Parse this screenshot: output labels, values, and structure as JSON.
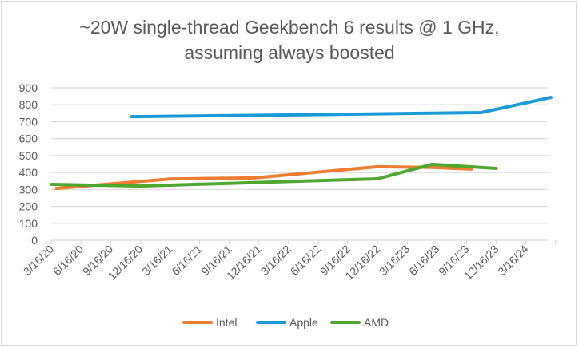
{
  "chart_data": {
    "type": "line",
    "title": [
      "~20W single-thread Geekbench 6 results @ 1 GHz,",
      "assuming always boosted"
    ],
    "xlabel": "",
    "ylabel": "",
    "ylim": [
      0,
      900
    ],
    "yticks": [
      0,
      100,
      200,
      300,
      400,
      500,
      600,
      700,
      800,
      900
    ],
    "xlim": [
      "2020-03-16",
      "2024-06-01"
    ],
    "xtick_labels": [
      "3/16/20",
      "6/16/20",
      "9/16/20",
      "12/16/20",
      "3/16/21",
      "6/16/21",
      "9/16/21",
      "12/16/21",
      "3/16/22",
      "6/16/22",
      "9/16/22",
      "12/16/22",
      "3/16/23",
      "6/16/23",
      "9/16/23",
      "12/16/23",
      "3/16/24"
    ],
    "grid": true,
    "legend": "bottom",
    "series": [
      {
        "name": "Intel",
        "color": "#ED7D31",
        "x": [
          "2020-04-01",
          "2020-12-01",
          "2021-03-16",
          "2021-12-01",
          "2022-12-16",
          "2023-06-01",
          "2023-10-01"
        ],
        "y": [
          306,
          345,
          362,
          368,
          434,
          430,
          420
        ]
      },
      {
        "name": "Apple",
        "color": "#1A9BD7",
        "x": [
          "2020-11-17",
          "2022-06-24",
          "2023-10-30",
          "2024-06-01"
        ],
        "y": [
          730,
          742,
          754,
          843
        ]
      },
      {
        "name": "AMD",
        "color": "#4EA72E",
        "x": [
          "2020-03-16",
          "2020-12-16",
          "2022-12-16",
          "2023-06-01",
          "2023-12-16"
        ],
        "y": [
          330,
          320,
          363,
          448,
          424
        ]
      }
    ]
  }
}
